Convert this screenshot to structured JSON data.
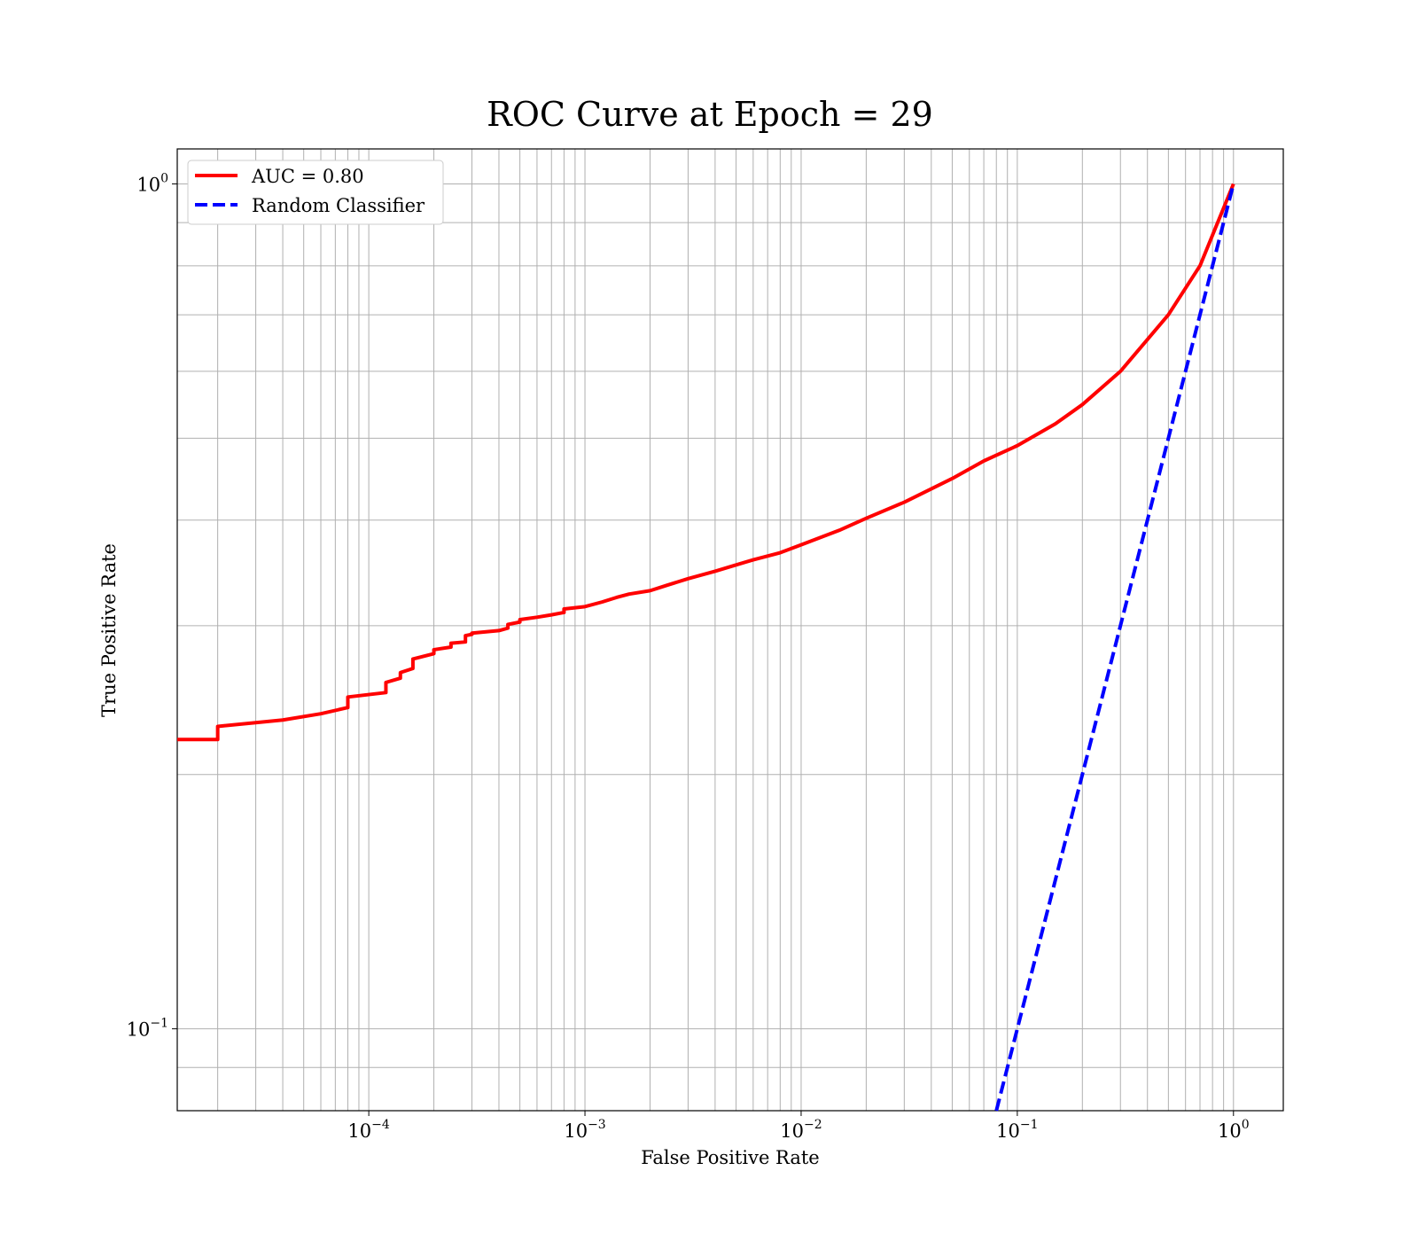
{
  "chart_data": {
    "type": "line",
    "title": "ROC Curve at Epoch = 29",
    "xlabel": "False Positive Rate",
    "ylabel": "True Positive Rate",
    "xscale": "log",
    "yscale": "log",
    "xlim": [
      1.3e-05,
      1.7
    ],
    "ylim": [
      0.08,
      1.1
    ],
    "grid": true,
    "legend": "top-left",
    "x_tick_labels": [
      {
        "value": 0.0001,
        "base": "10",
        "exp": "−4"
      },
      {
        "value": 0.001,
        "base": "10",
        "exp": "−3"
      },
      {
        "value": 0.01,
        "base": "10",
        "exp": "−2"
      },
      {
        "value": 0.1,
        "base": "10",
        "exp": "−1"
      },
      {
        "value": 1,
        "base": "10",
        "exp": "0"
      }
    ],
    "y_tick_labels": [
      {
        "value": 0.1,
        "base": "10",
        "exp": "−1"
      },
      {
        "value": 1,
        "base": "10",
        "exp": "0"
      }
    ],
    "series": [
      {
        "name": "AUC = 0.80",
        "color": "#ff0000",
        "style": "solid",
        "x": [
          1.3e-05,
          2e-05,
          2e-05,
          4e-05,
          6e-05,
          8e-05,
          8e-05,
          0.00012,
          0.00012,
          0.00014,
          0.00014,
          0.00016,
          0.00016,
          0.0002,
          0.0002,
          0.00024,
          0.00024,
          0.00028,
          0.00028,
          0.0003,
          0.0003,
          0.0004,
          0.00044,
          0.00044,
          0.0005,
          0.0005,
          0.0006,
          0.0007,
          0.0008,
          0.0008,
          0.001,
          0.0012,
          0.0014,
          0.0016,
          0.002,
          0.0024,
          0.003,
          0.004,
          0.005,
          0.006,
          0.008,
          0.01,
          0.015,
          0.02,
          0.03,
          0.05,
          0.07,
          0.1,
          0.15,
          0.2,
          0.3,
          0.5,
          0.7,
          1.0
        ],
        "y": [
          0.22,
          0.22,
          0.228,
          0.232,
          0.236,
          0.24,
          0.247,
          0.25,
          0.257,
          0.26,
          0.264,
          0.267,
          0.274,
          0.278,
          0.281,
          0.283,
          0.286,
          0.287,
          0.292,
          0.293,
          0.294,
          0.296,
          0.298,
          0.301,
          0.303,
          0.305,
          0.307,
          0.309,
          0.311,
          0.314,
          0.316,
          0.32,
          0.324,
          0.327,
          0.33,
          0.335,
          0.341,
          0.348,
          0.354,
          0.359,
          0.366,
          0.374,
          0.389,
          0.402,
          0.42,
          0.448,
          0.47,
          0.49,
          0.52,
          0.548,
          0.6,
          0.7,
          0.8,
          1.0
        ]
      },
      {
        "name": "Random Classifier",
        "color": "#0000ff",
        "style": "dashed",
        "x": [
          0.08,
          1.0
        ],
        "y": [
          0.08,
          1.0
        ]
      }
    ]
  }
}
